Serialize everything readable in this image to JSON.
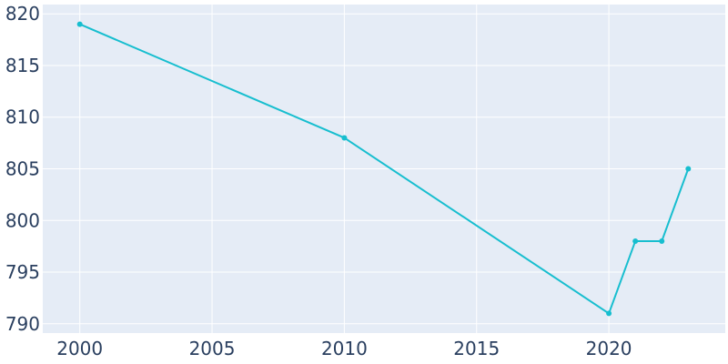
{
  "chart_data": {
    "type": "line",
    "title": "",
    "xlabel": "",
    "ylabel": "",
    "x": [
      2000,
      2010,
      2020,
      2021,
      2022,
      2023
    ],
    "series": [
      {
        "values": [
          819,
          808,
          791,
          798,
          798,
          805
        ]
      }
    ],
    "xlim": [
      1998.6,
      2024.4
    ],
    "ylim": [
      789.1,
      820.9
    ],
    "x_ticks": [
      2000,
      2005,
      2010,
      2015,
      2020
    ],
    "y_ticks": [
      790,
      795,
      800,
      805,
      810,
      815,
      820
    ],
    "x_tick_labels": [
      "2000",
      "2005",
      "2010",
      "2015",
      "2020"
    ],
    "y_tick_labels": [
      "790",
      "795",
      "800",
      "805",
      "810",
      "815",
      "820"
    ],
    "grid": true,
    "colors": {
      "line": "#17becf",
      "plot_bg": "#e5ecf6",
      "grid": "#ffffff",
      "text": "#2a3f5f"
    }
  }
}
